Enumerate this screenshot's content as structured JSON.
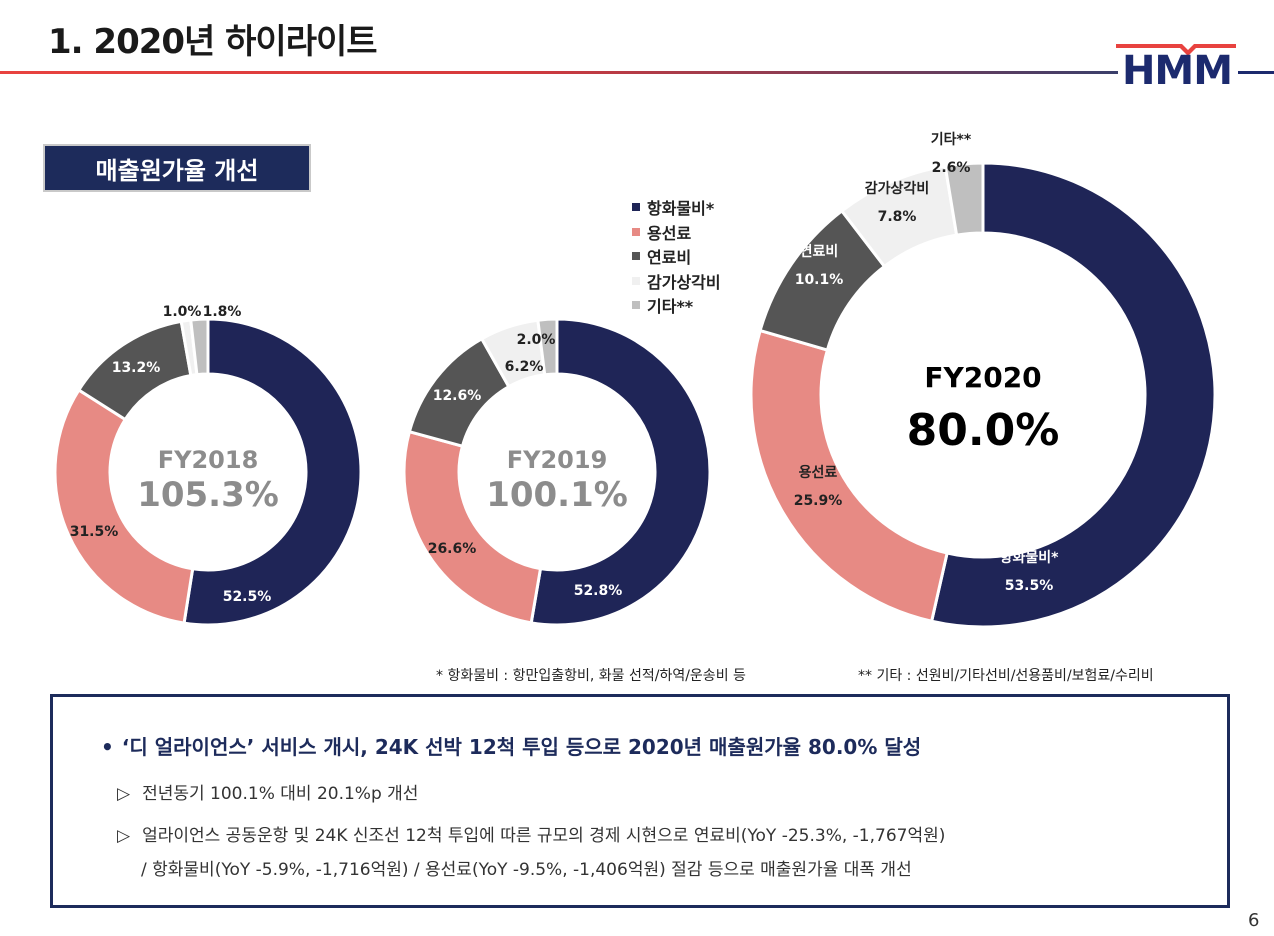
{
  "page": {
    "title": "1. 2020년 하이라이트",
    "section_label": "매출원가율 개선",
    "page_number": "6"
  },
  "logo": {
    "text": "HMM"
  },
  "colors": {
    "port_logistics": "#1f2557",
    "bunker_charter": "#e78a84",
    "fuel": "#555555",
    "depreciation": "#f0f0f0",
    "others": "#bfbfbf",
    "accent_red": "#e8423f",
    "navy": "#1d2b5b"
  },
  "legend": [
    "항화물비*",
    "용선료",
    "연료비",
    "감가상각비",
    "기타**"
  ],
  "chart_data": [
    {
      "type": "pie",
      "title": "FY2018",
      "center_value": "105.3%",
      "categories": [
        "항화물비*",
        "용선료",
        "연료비",
        "감가상각비",
        "기타**"
      ],
      "values": [
        52.5,
        31.5,
        13.2,
        1.0,
        1.8
      ],
      "labels": [
        "52.5%",
        "31.5%",
        "13.2%",
        "1.0%",
        "1.8%"
      ]
    },
    {
      "type": "pie",
      "title": "FY2019",
      "center_value": "100.1%",
      "categories": [
        "항화물비*",
        "용선료",
        "연료비",
        "감가상각비",
        "기타**"
      ],
      "values": [
        52.8,
        26.6,
        12.6,
        6.2,
        2.0
      ],
      "labels": [
        "52.8%",
        "26.6%",
        "12.6%",
        "6.2%",
        "2.0%"
      ]
    },
    {
      "type": "pie",
      "title": "FY2020",
      "center_value": "80.0%",
      "categories": [
        "항화물비*",
        "용선료",
        "연료비",
        "감가상각비",
        "기타**"
      ],
      "values": [
        53.5,
        25.9,
        10.1,
        7.8,
        2.6
      ],
      "labels": [
        "53.5%",
        "25.9%",
        "10.1%",
        "7.8%",
        "2.6%"
      ],
      "category_labels": [
        "항화물비*",
        "용선료",
        "연료비",
        "감가상각비",
        "기타**"
      ]
    }
  ],
  "footnotes": {
    "port_logistics": "* 항화물비 : 항만입출항비, 화물 선적/하역/운송비 등",
    "others": "** 기타 : 선원비/기타선비/선용품비/보험료/수리비"
  },
  "summary": {
    "bullet": "‘디 얼라이언스’ 서비스 개시, 24K 선박 12척 투입 등으로 2020년 매출원가율 80.0% 달성",
    "sub1": "전년동기 100.1% 대비 20.1%p 개선",
    "sub2": "얼라이언스 공동운항 및 24K 신조선 12척 투입에 따른 규모의 경제 시현으로 연료비(YoY -25.3%, -1,767억원)",
    "sub3": "/ 항화물비(YoY -5.9%, -1,716억원) / 용선료(YoY -9.5%, -1,406억원) 절감 등으로 매출원가율 대폭 개선"
  }
}
